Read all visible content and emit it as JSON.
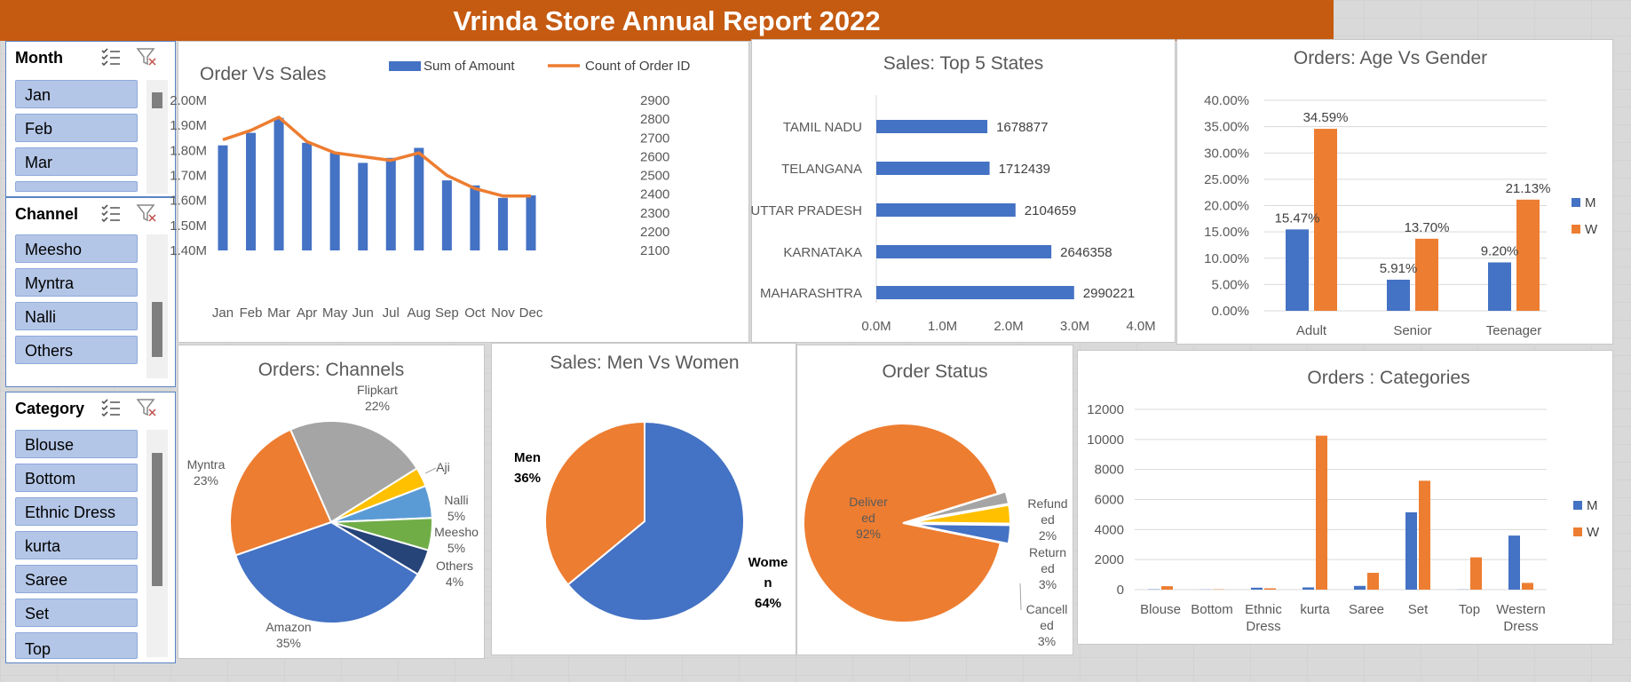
{
  "title": "Vrinda Store Annual Report 2022",
  "colors": {
    "blue": "#4472c4",
    "orange": "#ed7d31",
    "gray": "#a5a5a5",
    "gold": "#ffc000",
    "lightblue": "#5b9bd5",
    "green": "#70ad47",
    "navy": "#264478",
    "banner": "#c55a11"
  },
  "slicers": {
    "month": {
      "title": "Month",
      "items": [
        "Jan",
        "Feb",
        "Mar"
      ]
    },
    "channel": {
      "title": "Channel",
      "items": [
        "Meesho",
        "Myntra",
        "Nalli",
        "Others"
      ]
    },
    "category": {
      "title": "Category",
      "items": [
        "Blouse",
        "Bottom",
        "Ethnic Dress",
        "kurta",
        "Saree",
        "Set",
        "Top"
      ]
    }
  },
  "chart_data": [
    {
      "type": "bar-line",
      "title": "Order Vs Sales",
      "categories": [
        "Jan",
        "Feb",
        "Mar",
        "Apr",
        "May",
        "Jun",
        "Jul",
        "Aug",
        "Sep",
        "Oct",
        "Nov",
        "Dec"
      ],
      "series": [
        {
          "name": "Sum of Amount",
          "type": "bar",
          "axis": "left",
          "values": [
            1.82,
            1.87,
            1.93,
            1.83,
            1.79,
            1.75,
            1.77,
            1.81,
            1.68,
            1.66,
            1.61,
            1.62
          ]
        },
        {
          "name": "Count of Order ID",
          "type": "line",
          "axis": "right",
          "values": [
            2690,
            2740,
            2810,
            2680,
            2620,
            2600,
            2580,
            2620,
            2500,
            2430,
            2390,
            2390
          ]
        }
      ],
      "y_left": {
        "min": 1.4,
        "max": 2.0,
        "ticks": [
          "1.40M",
          "1.50M",
          "1.60M",
          "1.70M",
          "1.80M",
          "1.90M",
          "2.00M"
        ]
      },
      "y_right": {
        "min": 2100,
        "max": 2900,
        "ticks": [
          "2100",
          "2200",
          "2300",
          "2400",
          "2500",
          "2600",
          "2700",
          "2800",
          "2900"
        ]
      },
      "legend": "top"
    },
    {
      "type": "bar",
      "orientation": "horizontal",
      "title": "Sales: Top 5 States",
      "categories": [
        "TAMIL NADU",
        "TELANGANA",
        "UTTAR PRADESH",
        "KARNATAKA",
        "MAHARASHTRA"
      ],
      "values": [
        1678877,
        1712439,
        2104659,
        2646358,
        2990221
      ],
      "data_labels": [
        "1678877",
        "1712439",
        "2104659",
        "2646358",
        "2990221"
      ],
      "xlim": [
        0,
        4000000
      ],
      "x_ticks": [
        "0.0M",
        "1.0M",
        "2.0M",
        "3.0M",
        "4.0M"
      ]
    },
    {
      "type": "bar",
      "title": "Orders: Age Vs Gender",
      "categories": [
        "Adult",
        "Senior",
        "Teenager"
      ],
      "series": [
        {
          "name": "M",
          "values": [
            15.47,
            5.91,
            9.2
          ],
          "labels": [
            "15.47%",
            "5.91%",
            "9.20%"
          ]
        },
        {
          "name": "W",
          "values": [
            34.59,
            13.7,
            21.13
          ],
          "labels": [
            "34.59%",
            "13.70%",
            "21.13%"
          ]
        }
      ],
      "ylim": [
        0,
        40
      ],
      "y_ticks": [
        "0.00%",
        "5.00%",
        "10.00%",
        "15.00%",
        "20.00%",
        "25.00%",
        "30.00%",
        "35.00%",
        "40.00%"
      ],
      "legend": "right"
    },
    {
      "type": "pie",
      "title": "Orders: Channels",
      "slices": [
        {
          "name": "Amazon",
          "value": 35,
          "label": "35%"
        },
        {
          "name": "Myntra",
          "value": 23,
          "label": "23%"
        },
        {
          "name": "Flipkart",
          "value": 22,
          "label": "22%"
        },
        {
          "name": "Aji",
          "value": 3,
          "label": ""
        },
        {
          "name": "Nalli",
          "value": 5,
          "label": "5%"
        },
        {
          "name": "Meesho",
          "value": 5,
          "label": "5%"
        },
        {
          "name": "Others",
          "value": 4,
          "label": "4%"
        }
      ]
    },
    {
      "type": "pie",
      "title": "Sales: Men Vs Women",
      "slices": [
        {
          "name": "Women",
          "value": 64,
          "label": "64%"
        },
        {
          "name": "Men",
          "value": 36,
          "label": "36%"
        }
      ]
    },
    {
      "type": "pie",
      "title": "Order Status",
      "slices": [
        {
          "name": "Delivered",
          "value": 92,
          "label": "92%"
        },
        {
          "name": "Refunded",
          "value": 2,
          "label": "2%"
        },
        {
          "name": "Returned",
          "value": 3,
          "label": "3%"
        },
        {
          "name": "Cancelled",
          "value": 3,
          "label": "3%"
        }
      ]
    },
    {
      "type": "bar",
      "title": "Orders : Categories",
      "categories": [
        "Blouse",
        "Bottom",
        "Ethnic Dress",
        "kurta",
        "Saree",
        "Set",
        "Top",
        "Western Dress"
      ],
      "series": [
        {
          "name": "M",
          "values": [
            20,
            10,
            130,
            150,
            250,
            5150,
            10,
            3600
          ]
        },
        {
          "name": "W",
          "values": [
            230,
            20,
            90,
            10250,
            1120,
            7250,
            2150,
            450
          ]
        }
      ],
      "ylim": [
        0,
        12000
      ],
      "y_ticks": [
        "0",
        "2000",
        "4000",
        "6000",
        "8000",
        "10000",
        "12000"
      ],
      "legend": "right"
    }
  ]
}
